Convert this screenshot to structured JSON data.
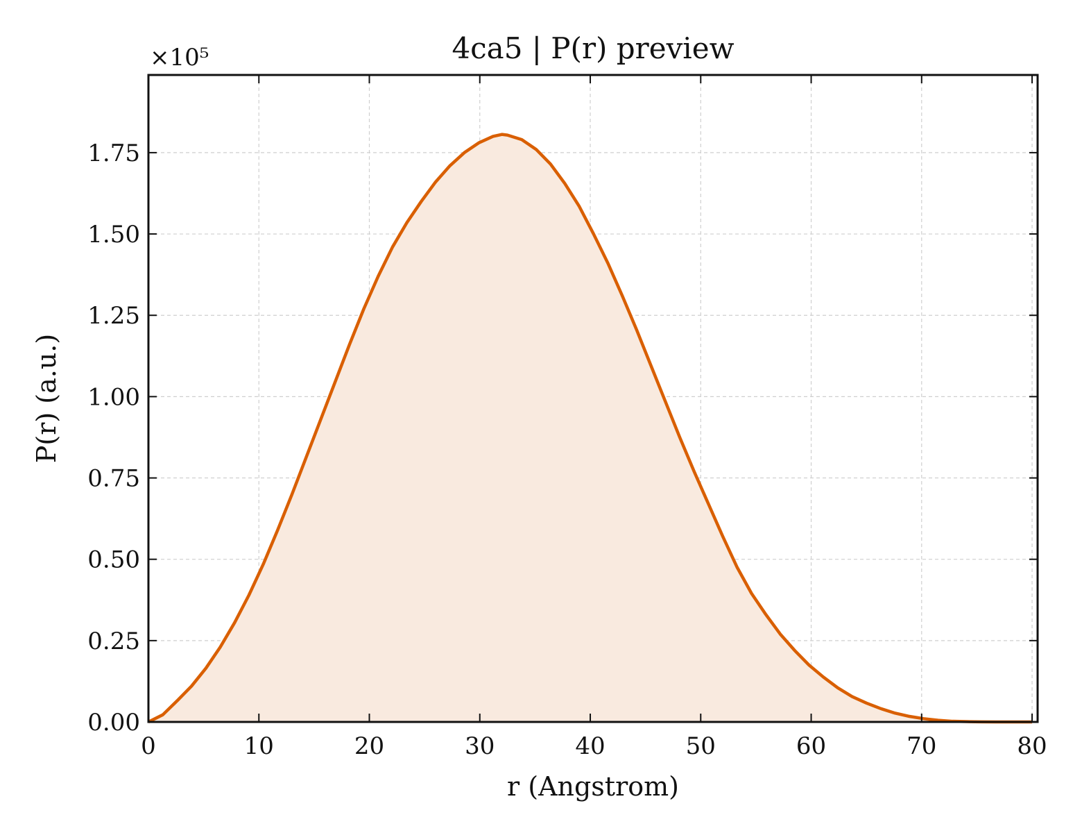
{
  "chart_data": {
    "type": "area",
    "title": "4ca5 | P(r) preview",
    "xlabel": "r (Angstrom)",
    "ylabel": "P(r) (a.u.)",
    "y_offset_label": "×10⁵",
    "xlim": [
      0,
      80.5
    ],
    "ylim": [
      0,
      1.9888
    ],
    "xticks": [
      0,
      10,
      20,
      30,
      40,
      50,
      60,
      70,
      80
    ],
    "xtick_labels": [
      "0",
      "10",
      "20",
      "30",
      "40",
      "50",
      "60",
      "70",
      "80"
    ],
    "yticks": [
      0,
      0.25,
      0.5,
      0.75,
      1.0,
      1.25,
      1.5,
      1.75
    ],
    "ytick_labels": [
      "0.00",
      "0.25",
      "0.50",
      "0.75",
      "1.00",
      "1.25",
      "1.50",
      "1.75"
    ],
    "grid": true,
    "colors": {
      "line": "#d95f02",
      "fill": "#f9eadf"
    },
    "series": [
      {
        "x": [
          0,
          1.3,
          2.6,
          3.9,
          5.2,
          6.5,
          7.8,
          9.1,
          10.4,
          11.7,
          13.0,
          14.3,
          15.6,
          16.9,
          18.2,
          19.5,
          20.8,
          22.1,
          23.4,
          24.7,
          26.0,
          27.3,
          28.6,
          29.9,
          31.2,
          32.0,
          32.5,
          33.8,
          35.1,
          36.4,
          37.7,
          39.0,
          40.3,
          41.6,
          42.9,
          44.2,
          45.5,
          46.8,
          48.1,
          49.4,
          50.7,
          52.0,
          53.3,
          54.6,
          55.9,
          57.2,
          58.5,
          59.8,
          61.1,
          62.4,
          63.7,
          65.0,
          66.3,
          67.6,
          68.9,
          70.2,
          71.5,
          72.8,
          74.1,
          75.4,
          76.7,
          78.0,
          79.3,
          80.0
        ],
        "y": [
          0.0,
          0.022,
          0.065,
          0.11,
          0.165,
          0.23,
          0.305,
          0.39,
          0.485,
          0.59,
          0.7,
          0.815,
          0.93,
          1.045,
          1.16,
          1.27,
          1.37,
          1.46,
          1.535,
          1.6,
          1.66,
          1.71,
          1.75,
          1.78,
          1.8,
          1.806,
          1.804,
          1.79,
          1.76,
          1.715,
          1.655,
          1.585,
          1.5,
          1.41,
          1.31,
          1.205,
          1.095,
          0.985,
          0.875,
          0.77,
          0.67,
          0.57,
          0.475,
          0.395,
          0.33,
          0.27,
          0.22,
          0.175,
          0.138,
          0.105,
          0.078,
          0.058,
          0.041,
          0.027,
          0.017,
          0.01,
          0.005,
          0.002,
          0.001,
          0.0003,
          0.0001,
          0.0,
          0.0,
          0.0
        ]
      }
    ]
  }
}
